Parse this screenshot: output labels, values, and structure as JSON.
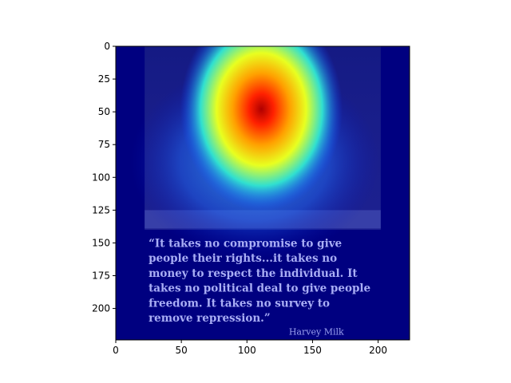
{
  "chart_data": {
    "type": "heatmap",
    "title": "",
    "xlabel": "",
    "ylabel": "",
    "xlim": [
      0,
      224
    ],
    "ylim": [
      224,
      0
    ],
    "x_ticks": [
      0,
      50,
      100,
      150,
      200
    ],
    "y_ticks": [
      0,
      25,
      50,
      75,
      100,
      125,
      150,
      175,
      200
    ],
    "x_tick_labels": [
      "0",
      "50",
      "100",
      "150",
      "200"
    ],
    "y_tick_labels": [
      "0",
      "25",
      "50",
      "75",
      "100",
      "125",
      "150",
      "175",
      "200"
    ],
    "colormap": "jet",
    "grid": false,
    "heat_peak": [
      111,
      48
    ],
    "background_color": "#000080"
  },
  "image_text": {
    "quote_lines": [
      "“It takes no compromise to give",
      "people their rights...it takes no",
      "money to respect the individual. It",
      "takes no political deal to give people",
      "freedom. It takes no survey to",
      "remove repression.”"
    ],
    "signature": "Harvey Milk"
  }
}
